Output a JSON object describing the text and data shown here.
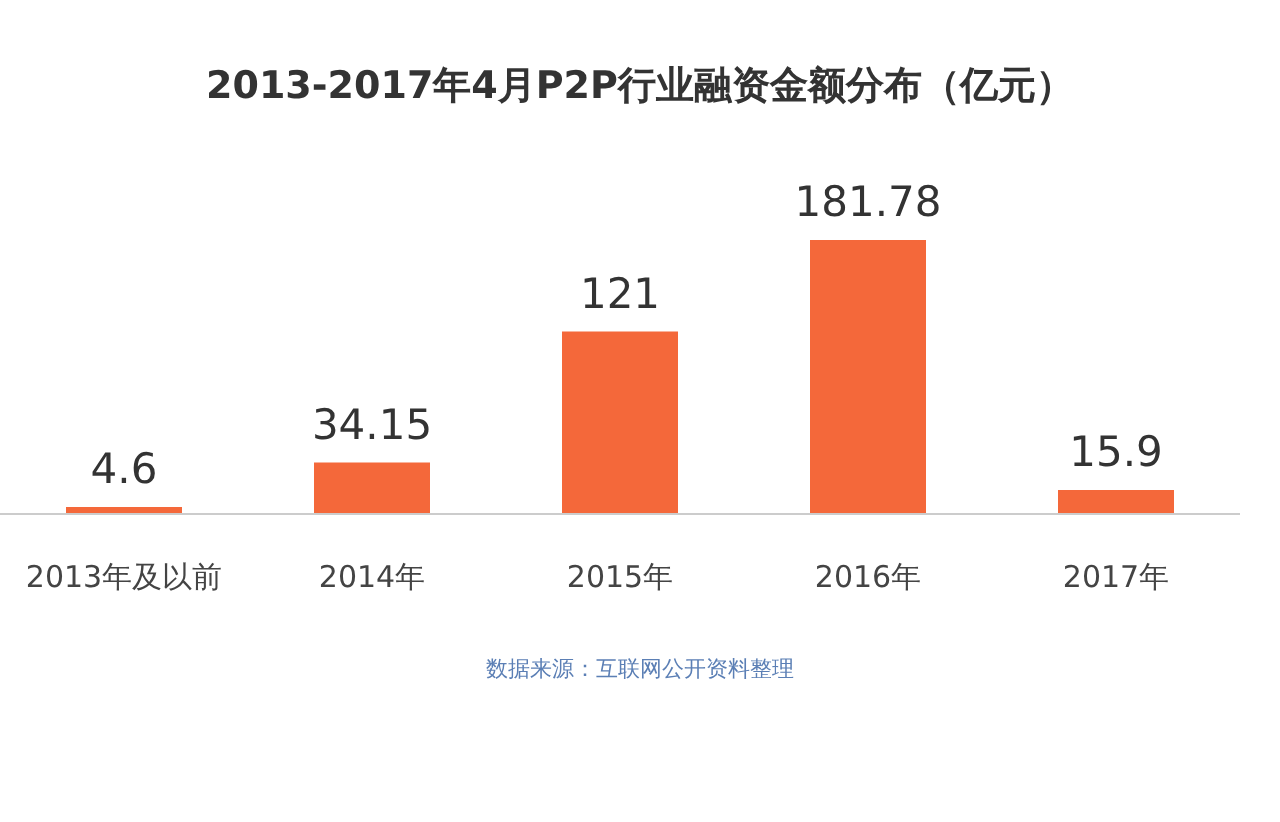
{
  "chart_data": {
    "type": "bar",
    "title": "2013-2017年4月P2P行业融资金额分布（亿元）",
    "categories": [
      "2013年及以前",
      "2014年",
      "2015年",
      "2016年",
      "2017年"
    ],
    "values": [
      4.6,
      34.15,
      121,
      181.78,
      15.9
    ],
    "color": "#f4683a",
    "data_labels": true,
    "annotations": [
      "数据来源：互联网公开资料整理"
    ]
  }
}
